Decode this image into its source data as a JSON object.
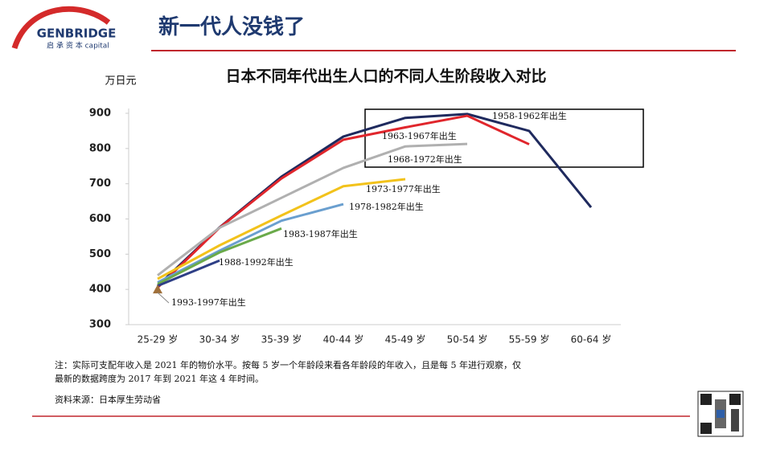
{
  "logo": {
    "name": "GENBRIDGE",
    "sub": "启 承 资 本 capital"
  },
  "header": {
    "title": "新一代人没钱了"
  },
  "chart_data": {
    "type": "line",
    "title": "日本不同年代出生人口的不同人生阶段收入对比",
    "y_label": "万日元",
    "categories": [
      "25-29 岁",
      "30-34 岁",
      "35-39 岁",
      "40-44 岁",
      "45-49 岁",
      "50-54 岁",
      "55-59 岁",
      "60-64 岁"
    ],
    "ylim": [
      300,
      900
    ],
    "yticks": [
      300,
      400,
      500,
      600,
      700,
      800,
      900
    ],
    "series": [
      {
        "name": "1958-1962年出生",
        "color": "#1f2a5e",
        "values": [
          410,
          576,
          720,
          834,
          887,
          898,
          850,
          633
        ]
      },
      {
        "name": "1963-1967年出生",
        "color": "#e0262c",
        "values": [
          405,
          575,
          715,
          825,
          860,
          893,
          812,
          null
        ]
      },
      {
        "name": "1968-1972年出生",
        "color": "#b0b0b0",
        "values": [
          440,
          575,
          660,
          745,
          806,
          813,
          null,
          null
        ]
      },
      {
        "name": "1973-1977年出生",
        "color": "#f2c21b",
        "values": [
          430,
          525,
          610,
          693,
          713,
          null,
          null,
          null
        ]
      },
      {
        "name": "1978-1982年出生",
        "color": "#6a9fcf",
        "values": [
          420,
          510,
          595,
          642,
          null,
          null,
          null,
          null
        ]
      },
      {
        "name": "1983-1987年出生",
        "color": "#6aaa4a",
        "values": [
          415,
          505,
          573,
          null,
          null,
          null,
          null,
          null
        ]
      },
      {
        "name": "1988-1992年出生",
        "color": "#2e3f86",
        "values": [
          410,
          482,
          null,
          null,
          null,
          null,
          null,
          null
        ]
      },
      {
        "name": "1993-1997年出生",
        "color": "#a0703a",
        "values": [
          400,
          null,
          null,
          null,
          null,
          null,
          null,
          null
        ]
      }
    ]
  },
  "notes": {
    "note1": "注：实际可支配年收入是 2021 年的物价水平。按每 5 岁一个年龄段来看各年龄段的年收入，且是每 5 年进行观察，仅",
    "note2": "最新的数据跨度为 2017 年到 2021 年这 4 年时间。",
    "source": "资料来源：日本厚生劳动省"
  }
}
